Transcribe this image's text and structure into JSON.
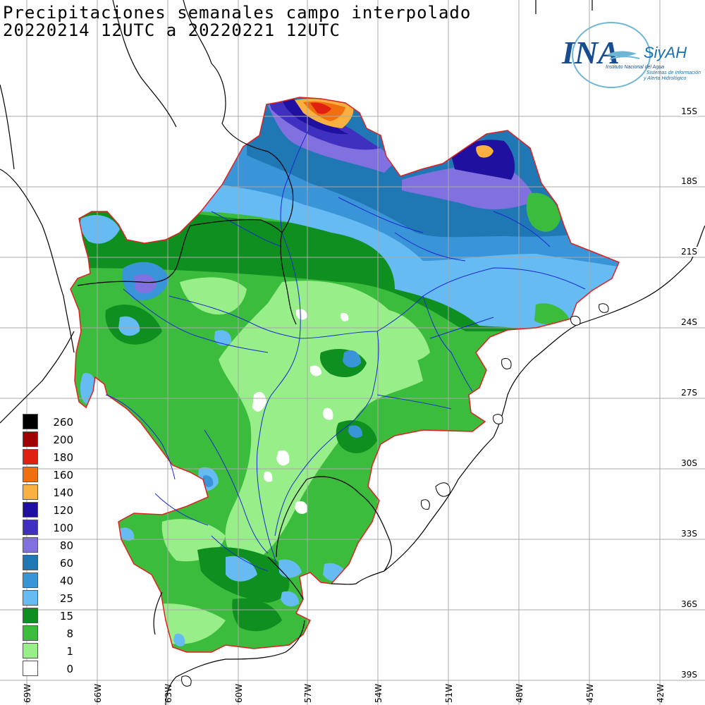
{
  "title": {
    "line1": "Precipitaciones semanales campo interpolado",
    "line2": "20220214 12UTC a 20220221 12UTC"
  },
  "logo": {
    "brand": "INA",
    "system": "SiyAH",
    "caption1": "Instituto Nacional del Agua",
    "caption2": "Sistemas de Información",
    "caption3": "y Alerta Hidrológico"
  },
  "lat_labels": [
    "15S",
    "18S",
    "21S",
    "24S",
    "27S",
    "30S",
    "33S",
    "36S",
    "39S"
  ],
  "lon_labels": [
    "69W",
    "66W",
    "63W",
    "60W",
    "57W",
    "54W",
    "51W",
    "48W",
    "45W",
    "42W"
  ],
  "legend": [
    {
      "label": "260",
      "color": "#000000"
    },
    {
      "label": "200",
      "color": "#a00000"
    },
    {
      "label": "180",
      "color": "#e02010"
    },
    {
      "label": "160",
      "color": "#f07010"
    },
    {
      "label": "140",
      "color": "#f8b040"
    },
    {
      "label": "120",
      "color": "#2010a0"
    },
    {
      "label": "100",
      "color": "#4030c0"
    },
    {
      "label": "80",
      "color": "#8070e0"
    },
    {
      "label": "60",
      "color": "#1f78b4"
    },
    {
      "label": "40",
      "color": "#3a94d8"
    },
    {
      "label": "25",
      "color": "#66bbf2"
    },
    {
      "label": "15",
      "color": "#0f8f20"
    },
    {
      "label": "8",
      "color": "#3cbc3c"
    },
    {
      "label": "1",
      "color": "#98ee88"
    },
    {
      "label": "0",
      "color": "#ffffff"
    }
  ]
}
